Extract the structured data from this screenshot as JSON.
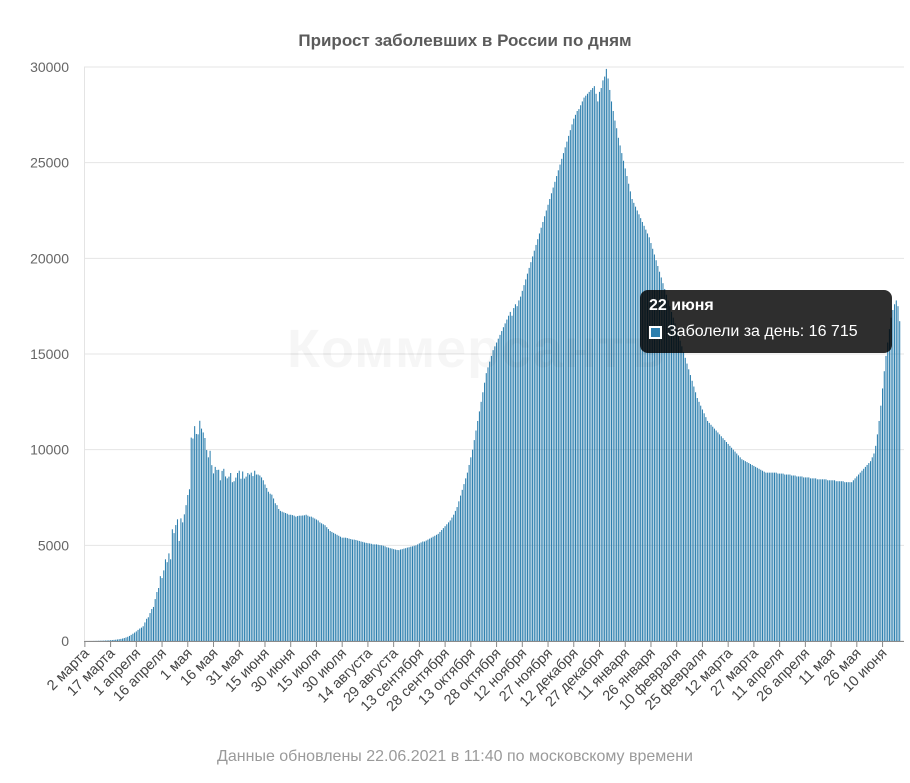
{
  "watermark": "Коммерсантъ",
  "footer": "Данные обновлены 22.06.2021 в 11:40 по московскому времени",
  "colors": {
    "bar": "#2d7fae",
    "bar_stroke": "#1f5f86",
    "grid": "#e4e4e4",
    "axis": "#8a8a8a"
  },
  "tooltip": {
    "date": "22 июня",
    "series_label": "Заболели за день",
    "value_text": "16 715"
  },
  "chart_data": {
    "type": "bar",
    "title": "Прирост заболевших в России по дням",
    "xlabel": "",
    "ylabel": "",
    "ylim": [
      0,
      30000
    ],
    "yticks": [
      0,
      5000,
      10000,
      15000,
      20000,
      25000,
      30000
    ],
    "x_start": "2020-03-02",
    "x_end": "2021-06-22",
    "xtick_labels": [
      "2 марта",
      "17 марта",
      "1 апреля",
      "16 апреля",
      "1 мая",
      "16 мая",
      "31 мая",
      "15 июня",
      "30 июня",
      "15 июля",
      "30 июля",
      "14 августа",
      "29 августа",
      "13 сентября",
      "28 сентября",
      "13 октября",
      "28 октября",
      "12 ноября",
      "27 ноября",
      "12 декабря",
      "27 декабря",
      "11 января",
      "26 января",
      "10 февраля",
      "25 февраля",
      "12 марта",
      "27 марта",
      "11 апреля",
      "26 апреля",
      "11 мая",
      "26 мая",
      "10 июня"
    ],
    "series": [
      {
        "name": "Заболели за день",
        "values": [
          0,
          0,
          0,
          1,
          1,
          3,
          5,
          7,
          10,
          14,
          17,
          20,
          25,
          30,
          35,
          42,
          50,
          58,
          68,
          80,
          95,
          110,
          130,
          155,
          185,
          220,
          265,
          320,
          380,
          440,
          500,
          580,
          650,
          700,
          770,
          970,
          1160,
          1240,
          1460,
          1670,
          1780,
          2190,
          2560,
          2770,
          3390,
          3290,
          3690,
          4270,
          4120,
          4580,
          4270,
          5840,
          5640,
          6060,
          6360,
          5230,
          6410,
          6200,
          6620,
          7100,
          7630,
          7930,
          10630,
          10580,
          11230,
          10820,
          10800,
          11510,
          11100,
          10900,
          10610,
          9980,
          9600,
          9940,
          9190,
          8760,
          9100,
          8940,
          8950,
          8400,
          8890,
          9000,
          8600,
          8500,
          8590,
          8780,
          8300,
          8350,
          8540,
          8780,
          8900,
          8480,
          8860,
          8490,
          8590,
          8780,
          8700,
          8800,
          8620,
          8900,
          8700,
          8700,
          8650,
          8550,
          8400,
          8180,
          8000,
          7800,
          7700,
          7650,
          7450,
          7200,
          7100,
          6900,
          6800,
          6760,
          6720,
          6690,
          6650,
          6600,
          6600,
          6580,
          6550,
          6500,
          6530,
          6550,
          6550,
          6560,
          6570,
          6600,
          6550,
          6500,
          6500,
          6450,
          6400,
          6350,
          6300,
          6200,
          6150,
          6100,
          6050,
          5950,
          5850,
          5750,
          5700,
          5650,
          5600,
          5550,
          5500,
          5450,
          5400,
          5400,
          5400,
          5380,
          5350,
          5330,
          5300,
          5300,
          5280,
          5250,
          5230,
          5200,
          5180,
          5150,
          5130,
          5110,
          5100,
          5080,
          5050,
          5050,
          5050,
          5030,
          5010,
          5000,
          4980,
          4950,
          4900,
          4880,
          4850,
          4830,
          4800,
          4780,
          4760,
          4750,
          4780,
          4800,
          4830,
          4850,
          4880,
          4900,
          4930,
          4950,
          4980,
          5000,
          5050,
          5100,
          5150,
          5200,
          5200,
          5250,
          5300,
          5350,
          5400,
          5450,
          5500,
          5550,
          5600,
          5700,
          5800,
          5900,
          6000,
          6100,
          6200,
          6300,
          6450,
          6600,
          6800,
          7000,
          7300,
          7600,
          7900,
          8200,
          8500,
          8800,
          9200,
          9600,
          10000,
          10500,
          11000,
          11500,
          12000,
          12500,
          13000,
          13500,
          14000,
          14300,
          14600,
          14900,
          15200,
          15400,
          15600,
          15800,
          16000,
          16200,
          16400,
          16600,
          16800,
          17000,
          17200,
          17000,
          17400,
          17600,
          17500,
          17800,
          18000,
          18300,
          18600,
          18900,
          19200,
          19500,
          19800,
          20100,
          20400,
          20700,
          21000,
          21300,
          21600,
          21900,
          22200,
          22500,
          22800,
          23100,
          23400,
          23700,
          24000,
          24300,
          24600,
          24900,
          25200,
          25500,
          25800,
          26100,
          26400,
          26700,
          27000,
          27300,
          27500,
          27700,
          27800,
          28000,
          28200,
          28400,
          28500,
          28600,
          28700,
          28800,
          28900,
          29000,
          28600,
          28200,
          28700,
          28900,
          29300,
          29500,
          29900,
          29400,
          28800,
          28200,
          27700,
          27200,
          26800,
          26300,
          25900,
          25500,
          25100,
          24700,
          24300,
          23900,
          23500,
          23100,
          22900,
          22700,
          22500,
          22300,
          22100,
          21900,
          21700,
          21500,
          21300,
          21100,
          20800,
          20500,
          20200,
          19900,
          19600,
          19300,
          19000,
          18700,
          18400,
          18100,
          17800,
          17500,
          17200,
          16900,
          16600,
          16300,
          16000,
          15700,
          15400,
          15100,
          14800,
          14500,
          14200,
          13900,
          13600,
          13300,
          13000,
          12700,
          12500,
          12300,
          12100,
          11900,
          11700,
          11500,
          11400,
          11300,
          11200,
          11100,
          11000,
          10900,
          10800,
          10700,
          10600,
          10500,
          10400,
          10300,
          10200,
          10100,
          10000,
          9900,
          9800,
          9700,
          9600,
          9500,
          9450,
          9400,
          9350,
          9300,
          9250,
          9200,
          9150,
          9100,
          9050,
          9000,
          8950,
          8900,
          8850,
          8800,
          8800,
          8800,
          8800,
          8800,
          8800,
          8800,
          8750,
          8750,
          8750,
          8750,
          8700,
          8700,
          8700,
          8700,
          8650,
          8650,
          8650,
          8600,
          8600,
          8600,
          8600,
          8550,
          8550,
          8550,
          8550,
          8500,
          8500,
          8500,
          8500,
          8450,
          8450,
          8450,
          8450,
          8450,
          8450,
          8400,
          8400,
          8400,
          8400,
          8400,
          8350,
          8350,
          8350,
          8350,
          8350,
          8300,
          8300,
          8300,
          8300,
          8300,
          8400,
          8500,
          8600,
          8700,
          8800,
          8900,
          9000,
          9100,
          9200,
          9300,
          9400,
          9600,
          9800,
          10200,
          10800,
          11500,
          12300,
          13200,
          14100,
          14900,
          15600,
          16300,
          16900,
          17300,
          17600,
          17800,
          17500,
          16715
        ]
      }
    ]
  }
}
